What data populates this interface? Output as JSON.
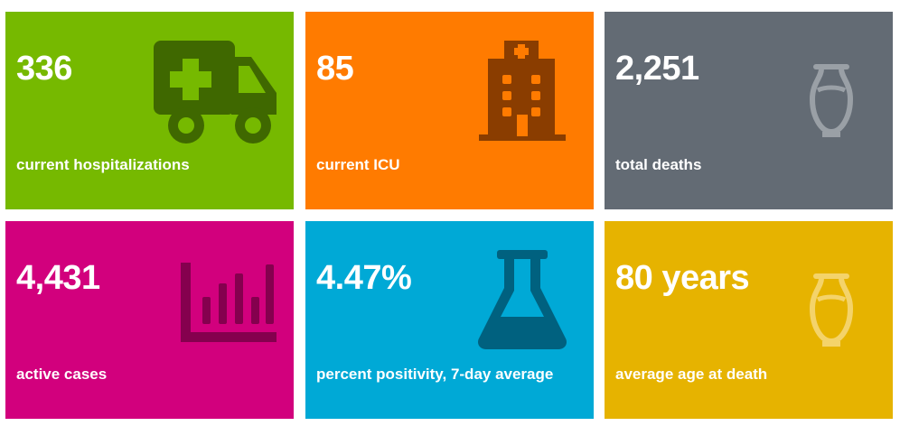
{
  "tiles": [
    {
      "value": "336",
      "label": "current hospitalizations",
      "icon": "ambulance-icon",
      "color": "#76b900"
    },
    {
      "value": "85",
      "label": "current ICU",
      "icon": "hospital-building-icon",
      "color": "#ff7b00"
    },
    {
      "value": "2,251",
      "label": "total deaths",
      "icon": "urn-icon",
      "color": "#636b74"
    },
    {
      "value": "4,431",
      "label": "active cases",
      "icon": "bar-chart-icon",
      "color": "#d2007d"
    },
    {
      "value": "4.47%",
      "label": "percent positivity, 7-day average",
      "icon": "flask-icon",
      "color": "#00a9d6"
    },
    {
      "value": "80 years",
      "label": "average age at death",
      "icon": "urn-icon",
      "color": "#e6b300"
    }
  ]
}
